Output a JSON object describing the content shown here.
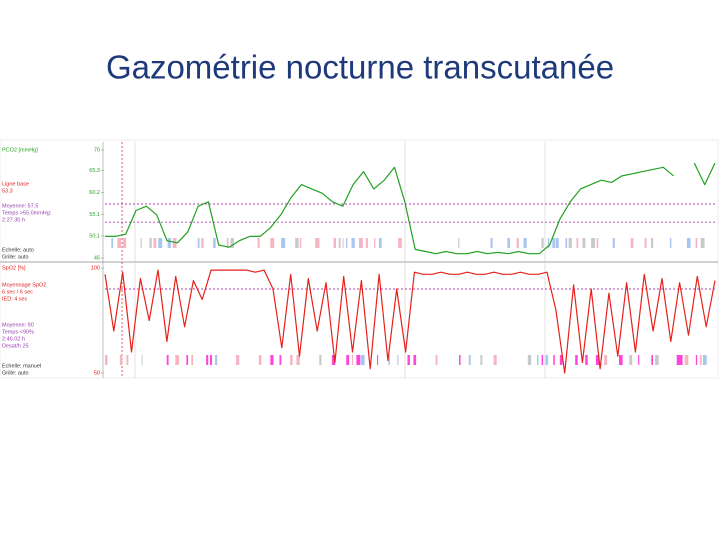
{
  "title": "Gazométrie nocturne transcutanée",
  "chart_data": [
    {
      "type": "line",
      "series": [
        {
          "name": "PCO2 [mmHg]",
          "color": "#22a022",
          "values": [
            50,
            50,
            50.5,
            56,
            57,
            55,
            49,
            48.5,
            51,
            57,
            58,
            48,
            47.5,
            49,
            50,
            50,
            52,
            55,
            59,
            62,
            61,
            60,
            58,
            57,
            62,
            65,
            61,
            63,
            66,
            58,
            47,
            46.5,
            46,
            46.5,
            46,
            46,
            46.5,
            46,
            46.3,
            46,
            46.5,
            46,
            46,
            48,
            54,
            58,
            61,
            62,
            63,
            62.5,
            64,
            64.5,
            65,
            65.5,
            66,
            64,
            null,
            67,
            62,
            67
          ]
        }
      ],
      "ylim": [
        45,
        70
      ],
      "yticks": [
        70,
        65.3,
        60.2,
        55.1,
        50.1,
        45
      ],
      "baseline_label": "Ligne base",
      "baseline": 53.3,
      "mean_label": "Moyenne: 57.5",
      "mean": 57.5,
      "notes": [
        "Temps >55.0mmHg:",
        "2:27.30 h"
      ],
      "scale_notes": [
        "Echelle: auto",
        "Grille: auto"
      ]
    },
    {
      "type": "line",
      "series": [
        {
          "name": "SpO2 [%]",
          "color": "#e8201a",
          "values": [
            97,
            70,
            98,
            60,
            95,
            75,
            99,
            65,
            96,
            72,
            94,
            85,
            99,
            99,
            99,
            99,
            99,
            98,
            99,
            90,
            62,
            97,
            58,
            95,
            70,
            93,
            55,
            96,
            60,
            94,
            52,
            97,
            56,
            90,
            60,
            98,
            97,
            97,
            98,
            97,
            97,
            98,
            97,
            97,
            98,
            97,
            97,
            98,
            97,
            97,
            98,
            80,
            50,
            92,
            55,
            90,
            52,
            88,
            58,
            93,
            60,
            97,
            70,
            95,
            65,
            93,
            68,
            96,
            72,
            94
          ]
        }
      ],
      "ylim": [
        50,
        100
      ],
      "yticks": [
        100,
        50
      ],
      "settings": [
        "Moyennage SpO2",
        "6 sec / 6 sec",
        "IED: 4 sec"
      ],
      "mean_label": "Moyenne: 90",
      "mean": 90,
      "notes": [
        "Temps <90%",
        "2:46.02 h",
        "Desat/h 25"
      ],
      "scale_notes": [
        "Echelle: manuel",
        "Grille: auto"
      ]
    }
  ]
}
